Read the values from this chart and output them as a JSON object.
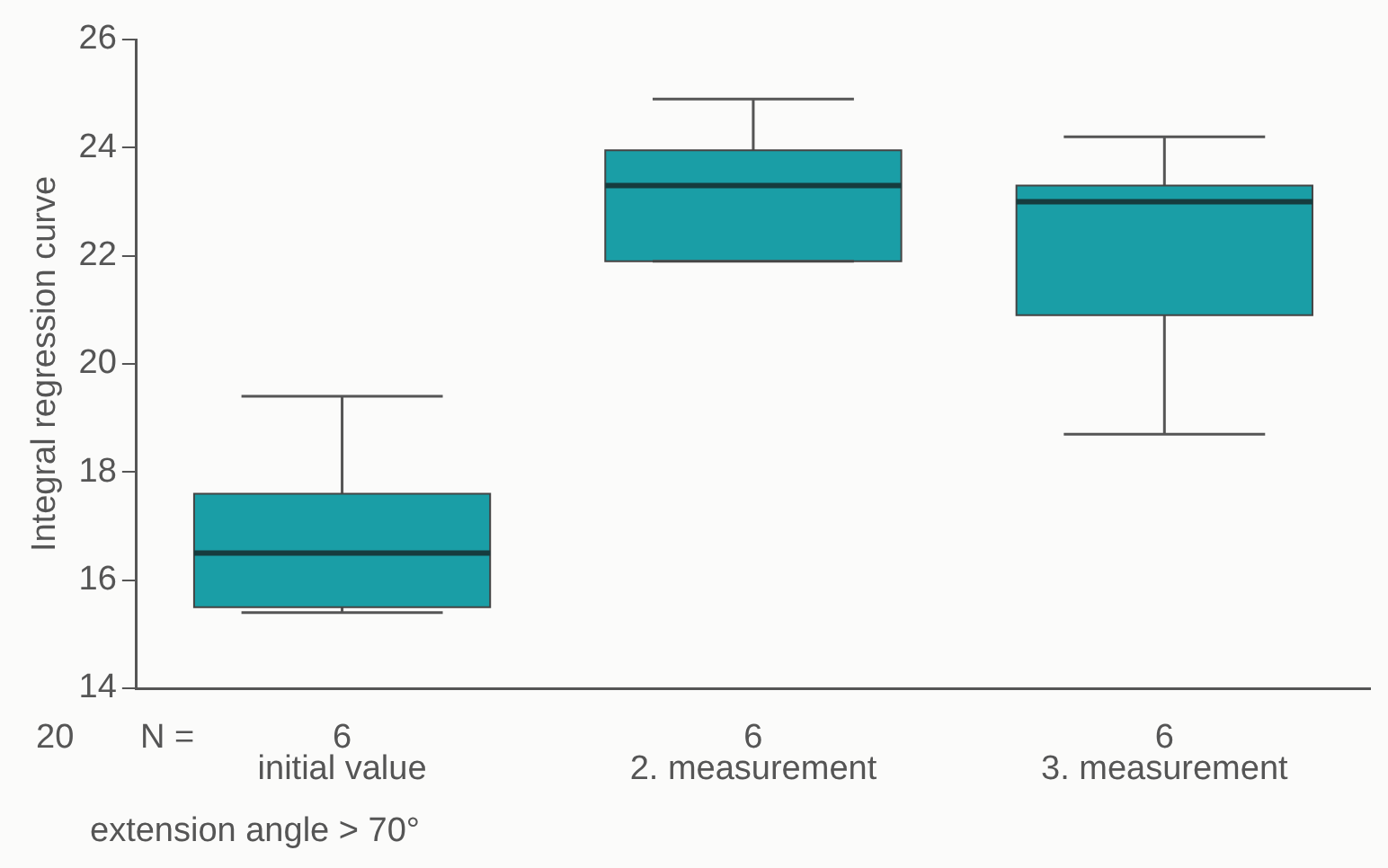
{
  "chart_data": {
    "type": "box",
    "ylabel": "Integral regression curve",
    "categories": [
      "initial value",
      "2. measurement",
      "3. measurement"
    ],
    "boxes": [
      {
        "low": 15.4,
        "q1": 15.5,
        "median": 16.5,
        "q3": 17.6,
        "high": 19.4
      },
      {
        "low": 21.9,
        "q1": 21.9,
        "median": 23.3,
        "q3": 23.95,
        "high": 24.9
      },
      {
        "low": 18.7,
        "q1": 20.9,
        "median": 23.0,
        "q3": 23.3,
        "high": 24.2
      }
    ],
    "color": "#1a9ea6",
    "ylim": [
      14,
      26
    ],
    "yticks": [
      14,
      16,
      18,
      20,
      22,
      24,
      26
    ],
    "grid": false,
    "legend": false,
    "annotations": [
      "20",
      "N =",
      "6",
      "6",
      "6",
      "extension angle > 70°"
    ]
  }
}
